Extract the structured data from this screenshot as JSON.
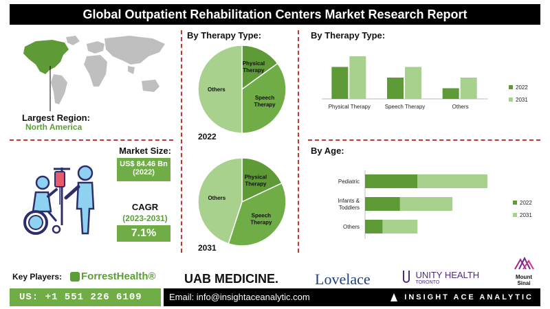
{
  "header": {
    "title": "Global Outpatient Rehabilitation Centers Market Research Report"
  },
  "region": {
    "label": "Largest Region:",
    "value": "North America"
  },
  "market_size": {
    "label": "Market Size:",
    "value_line1": "US$ 84.46 Bn",
    "value_line2": "(2022)"
  },
  "cagr": {
    "label": "CAGR",
    "period": "(2023-2031)",
    "value": "7.1%"
  },
  "colors": {
    "dark_green": "#5e9a36",
    "light_green": "#a9d18e",
    "accent_green": "#70ad47",
    "divider_red": "#c0392b"
  },
  "icons": {
    "map": "world-map-icon",
    "rehab": "wheelchair-patient-icon"
  },
  "chart_data": [
    {
      "type": "pie",
      "title": "By Therapy Type:",
      "year_label": "2022",
      "labels": [
        "Physical Therapy",
        "Speech Therapy",
        "Others"
      ],
      "values": [
        15,
        35,
        50
      ]
    },
    {
      "type": "pie",
      "title": "",
      "year_label": "2031",
      "labels": [
        "Physical Therapy",
        "Speech Therapy",
        "Others"
      ],
      "values": [
        18,
        37,
        45
      ]
    },
    {
      "type": "bar",
      "title": "By Therapy Type:",
      "categories": [
        "Physical Therapy",
        "Speech Therapy",
        "Others"
      ],
      "series": [
        {
          "name": "2022",
          "values": [
            30,
            20,
            10
          ]
        },
        {
          "name": "2031",
          "values": [
            40,
            30,
            20
          ]
        }
      ],
      "legend": "right"
    },
    {
      "type": "bar",
      "orientation": "horizontal",
      "stacked": true,
      "title": "By Age:",
      "categories": [
        "Pediatric",
        "Infants & Toddlers",
        "Others"
      ],
      "series": [
        {
          "name": "2022",
          "values": [
            15,
            10,
            5
          ]
        },
        {
          "name": "2031",
          "values": [
            20,
            15,
            10
          ]
        }
      ],
      "legend": "right"
    }
  ],
  "footer": {
    "key_players_label": "Key Players:",
    "players": [
      "ForrestHealth®",
      "UAB MEDICINE.",
      "Lovelace",
      "UNITY HEALTH",
      "TORONTO",
      "Mount",
      "Sinai"
    ],
    "phone": "US: +1 551 226 6109",
    "email": "Email: info@insightaceanalytic.com",
    "brand": "INSIGHT ACE ANALYTIC"
  }
}
